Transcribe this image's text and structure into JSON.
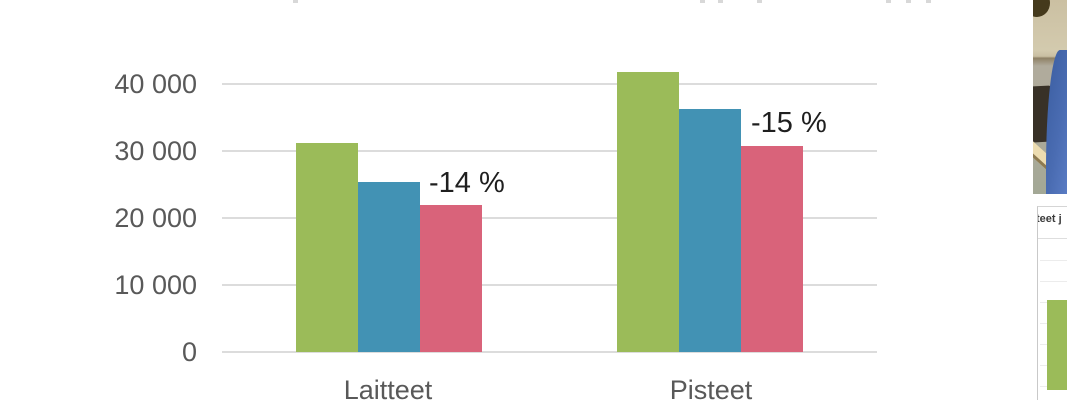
{
  "chart_data": {
    "type": "bar",
    "title": "",
    "categories": [
      "Laitteet",
      "Pisteet"
    ],
    "series": [
      {
        "name": "green",
        "color": "#9bbb59",
        "values": [
          31200,
          41800
        ]
      },
      {
        "name": "blue",
        "color": "#4292b4",
        "values": [
          25400,
          36300
        ]
      },
      {
        "name": "red",
        "color": "#d9637a",
        "values": [
          22000,
          30800
        ]
      }
    ],
    "annotations": [
      {
        "text": "-14 %",
        "attached_to": "Laitteet red bar"
      },
      {
        "text": "-15 %",
        "attached_to": "Pisteet red bar"
      }
    ],
    "y_axis": {
      "ticks": [
        {
          "label": "40 000",
          "value": 40000
        },
        {
          "label": "30 000",
          "value": 30000
        },
        {
          "label": "20 000",
          "value": 20000
        },
        {
          "label": "10 000",
          "value": 10000
        },
        {
          "label": "0",
          "value": 0
        }
      ],
      "range": [
        0,
        45000
      ]
    },
    "grid": true,
    "legend": "none",
    "colors": {
      "tick_text": "#595959",
      "gridline": "#dcdcdc",
      "annotation_text": "#1f1f1f",
      "category_text": "#595959"
    }
  },
  "sidebar": {
    "video_thumbnail": {
      "description": "presenter in blue shirt at desk"
    },
    "slide_thumbnail": {
      "title_fragment": "teet j"
    }
  }
}
